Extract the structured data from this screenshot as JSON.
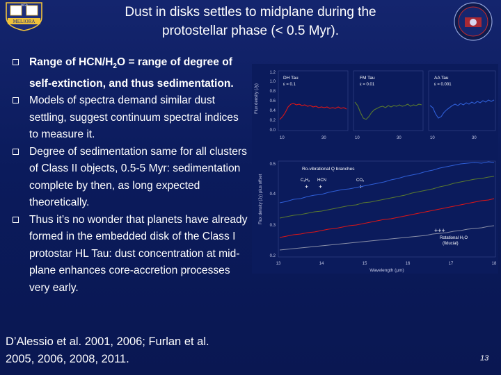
{
  "title": {
    "line1": "Dust in disks settles to midplane during the",
    "line2": "protostellar phase (< 0.5 Myr)."
  },
  "logo_left": {
    "text_top": "1850",
    "text_bottom": "MELIORA"
  },
  "bullets": [
    {
      "text_before": "Range of HCN/H",
      "sub": "2",
      "text_after": "O = range of degree of self-extinction, and thus sedimentation."
    },
    {
      "text": "Models of spectra demand similar dust settling, suggest continuum spectral indices to measure it."
    },
    {
      "text": "Degree of sedimentation same for all clusters of Class II objects, 0.5-5 Myr: sedimentation complete by then, as long expected theoretically."
    },
    {
      "text": "Thus it’s no wonder that planets have already formed in the embedded disk of the Class I protostar HL Tau: dust concentration at mid-plane enhances core-accretion processes very early."
    }
  ],
  "references": {
    "line1": "D’Alessio et al. 2001, 2006; Furlan et al.",
    "line2": "2005, 2006, 2008, 2011."
  },
  "page_number": "13",
  "colors": {
    "background": "#0b1b5c",
    "text": "#ffffff",
    "red_series": "#e01515",
    "green_series": "#4f6e2a",
    "blue_series": "#2f5fd8"
  },
  "figure": {
    "top_panels": {
      "y_axis_label": "Flux density (Jy)",
      "y_ticks": [
        "1.2",
        "1.0",
        "0.8",
        "0.6",
        "0.4",
        "0.2",
        "0.0"
      ],
      "panels": [
        {
          "name": "DH Tau",
          "eps": "ε = 0.1",
          "x_ticks": [
            "10",
            "30"
          ]
        },
        {
          "name": "FM Tau",
          "eps": "ε = 0.01",
          "x_ticks": [
            "10",
            "30"
          ]
        },
        {
          "name": "AA Tau",
          "eps": "ε = 0.001",
          "x_ticks": [
            "10",
            "30"
          ]
        }
      ]
    },
    "bottom_panel": {
      "y_axis_label": "Flux density (Jy) plus offset",
      "x_axis_label": "Wavelength (µm)",
      "x_ticks": [
        "13",
        "14",
        "15",
        "16",
        "17",
        "18"
      ],
      "y_ticks": [
        "0.5",
        "0.4",
        "0.3",
        "0.2"
      ],
      "annotations": {
        "rovib": "Ro-vibrational Q branches",
        "c2h2": "C₂H₂",
        "hcn": "HCN",
        "co2": "CO₂",
        "rotational_h2o": "Rotational H₂O",
        "fiducial": "(fiducial)"
      }
    }
  }
}
